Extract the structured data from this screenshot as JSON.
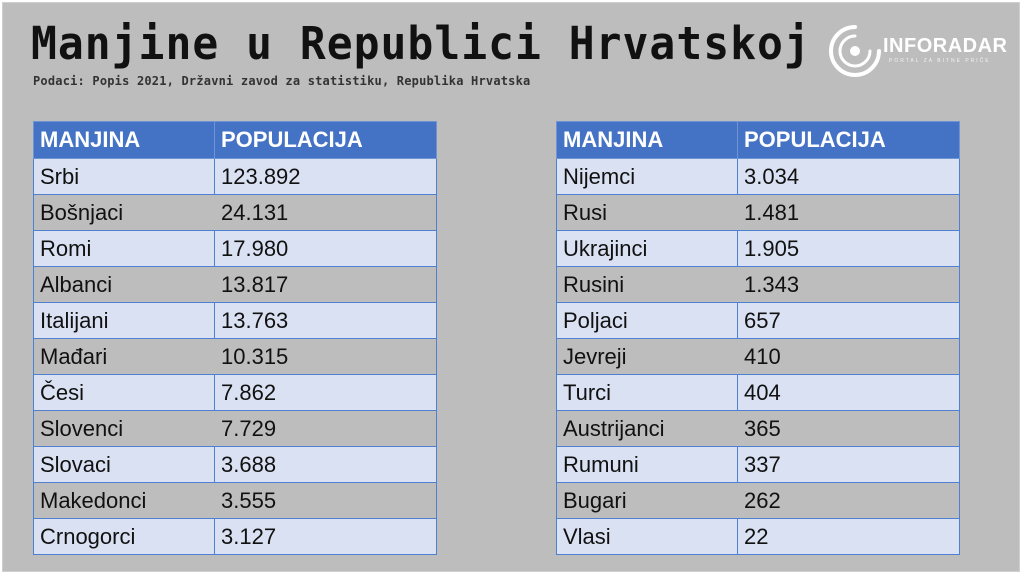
{
  "header": {
    "title": "Manjine u Republici Hrvatskoj",
    "subtitle": "Podaci: Popis 2021, Državni zavod za statistiku, Republika Hrvatska"
  },
  "logo": {
    "name": "INFORADAR",
    "tagline": "PORTAL ZA BITNE PRIČE"
  },
  "tables": {
    "left": {
      "headers": [
        "MANJINA",
        "POPULACIJA"
      ],
      "rows": [
        {
          "manjina": "Srbi",
          "populacija": "123.892"
        },
        {
          "manjina": "Bošnjaci",
          "populacija": "24.131"
        },
        {
          "manjina": "Romi",
          "populacija": "17.980"
        },
        {
          "manjina": "Albanci",
          "populacija": "13.817"
        },
        {
          "manjina": "Italijani",
          "populacija": "13.763"
        },
        {
          "manjina": "Mađari",
          "populacija": "10.315"
        },
        {
          "manjina": "Česi",
          "populacija": "7.862"
        },
        {
          "manjina": "Slovenci",
          "populacija": "7.729"
        },
        {
          "manjina": "Slovaci",
          "populacija": "3.688"
        },
        {
          "manjina": "Makedonci",
          "populacija": "3.555"
        },
        {
          "manjina": "Crnogorci",
          "populacija": "3.127"
        }
      ]
    },
    "right": {
      "headers": [
        "MANJINA",
        "POPULACIJA"
      ],
      "rows": [
        {
          "manjina": "Nijemci",
          "populacija": "3.034"
        },
        {
          "manjina": "Rusi",
          "populacija": "1.481"
        },
        {
          "manjina": "Ukrajinci",
          "populacija": "1.905"
        },
        {
          "manjina": "Rusini",
          "populacija": "1.343"
        },
        {
          "manjina": "Poljaci",
          "populacija": "657"
        },
        {
          "manjina": "Jevreji",
          "populacija": "410"
        },
        {
          "manjina": "Turci",
          "populacija": "404"
        },
        {
          "manjina": "Austrijanci",
          "populacija": "365"
        },
        {
          "manjina": "Rumuni",
          "populacija": "337"
        },
        {
          "manjina": "Bugari",
          "populacija": "262"
        },
        {
          "manjina": "Vlasi",
          "populacija": "22"
        }
      ]
    }
  },
  "colors": {
    "background": "#bdbdbd",
    "header_fill": "#4472c4",
    "row_band": "#d9e1f3"
  }
}
